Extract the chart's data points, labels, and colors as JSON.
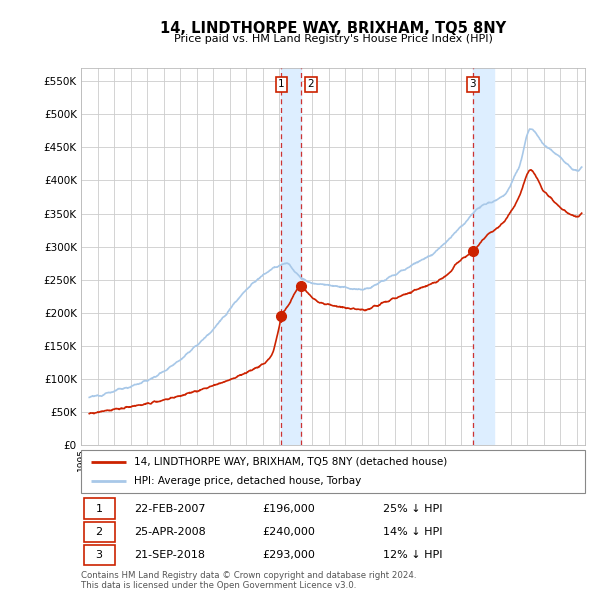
{
  "title": "14, LINDTHORPE WAY, BRIXHAM, TQ5 8NY",
  "subtitle": "Price paid vs. HM Land Registry's House Price Index (HPI)",
  "ylim": [
    0,
    570000
  ],
  "yticks": [
    0,
    50000,
    100000,
    150000,
    200000,
    250000,
    300000,
    350000,
    400000,
    450000,
    500000,
    550000
  ],
  "ytick_labels": [
    "£0",
    "£50K",
    "£100K",
    "£150K",
    "£200K",
    "£250K",
    "£300K",
    "£350K",
    "£400K",
    "£450K",
    "£500K",
    "£550K"
  ],
  "hpi_color": "#a8c8e8",
  "price_color": "#cc2200",
  "vline_color": "#cc3333",
  "shade_color": "#ddeeff",
  "grid_color": "#cccccc",
  "background_color": "#ffffff",
  "legend_label_price": "14, LINDTHORPE WAY, BRIXHAM, TQ5 8NY (detached house)",
  "legend_label_hpi": "HPI: Average price, detached house, Torbay",
  "transactions": [
    {
      "num": 1,
      "date": "22-FEB-2007",
      "price": 196000,
      "pct": "25%",
      "x_year": 2007.13
    },
    {
      "num": 2,
      "date": "25-APR-2008",
      "price": 240000,
      "pct": "14%",
      "x_year": 2008.32
    },
    {
      "num": 3,
      "date": "21-SEP-2018",
      "price": 293000,
      "pct": "12%",
      "x_year": 2018.72
    }
  ],
  "footnote1": "Contains HM Land Registry data © Crown copyright and database right 2024.",
  "footnote2": "This data is licensed under the Open Government Licence v3.0.",
  "xlim_start": 1995.5,
  "xlim_end": 2025.5
}
